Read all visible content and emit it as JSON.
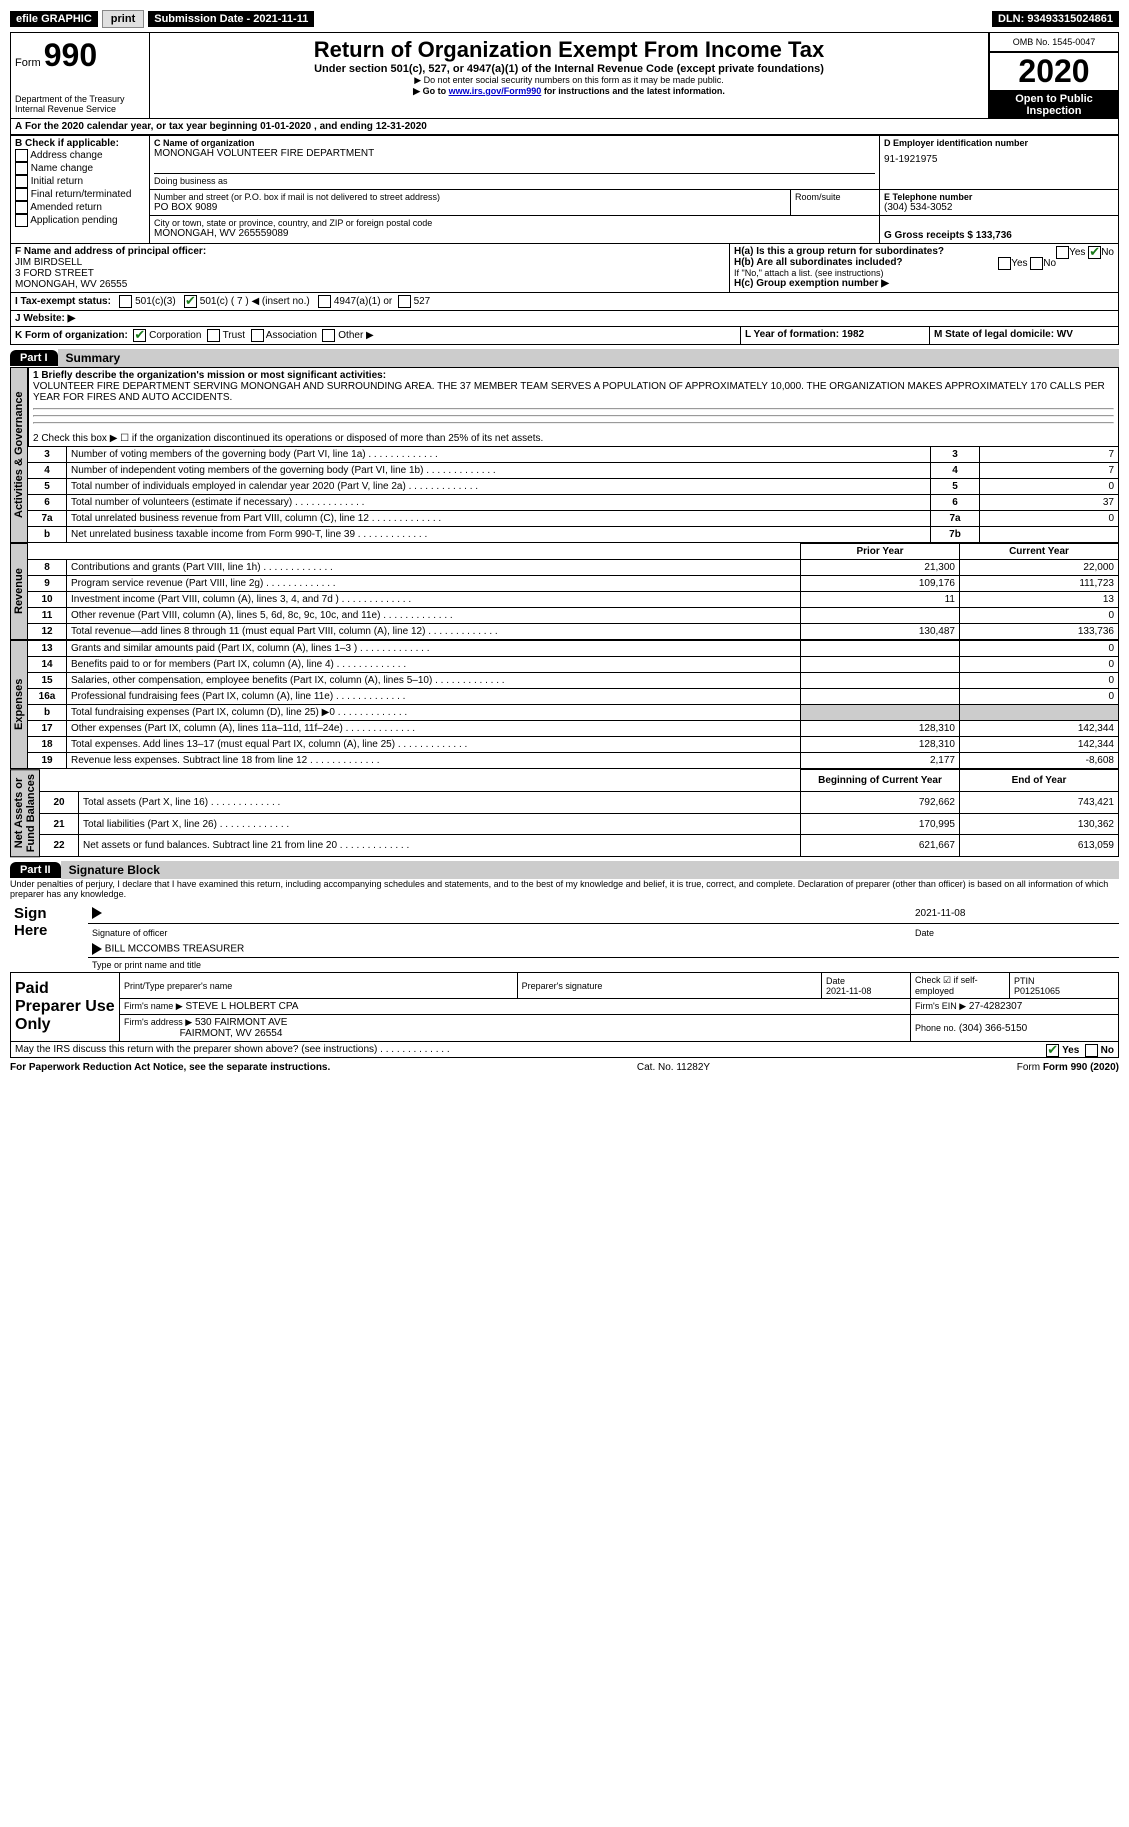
{
  "topbar": {
    "efile": "efile GRAPHIC",
    "print": "print",
    "sub_label": "Submission Date - 2021-11-11",
    "dln": "DLN: 93493315024861"
  },
  "header": {
    "form_word": "Form",
    "form_num": "990",
    "dept": "Department of the Treasury\nInternal Revenue Service",
    "title": "Return of Organization Exempt From Income Tax",
    "subtitle": "Under section 501(c), 527, or 4947(a)(1) of the Internal Revenue Code (except private foundations)",
    "note1": "▶ Do not enter social security numbers on this form as it may be made public.",
    "note2_pre": "▶ Go to ",
    "note2_link": "www.irs.gov/Form990",
    "note2_post": " for instructions and the latest information.",
    "omb": "OMB No. 1545-0047",
    "year": "2020",
    "open": "Open to Public Inspection"
  },
  "periodA": "For the 2020 calendar year, or tax year beginning 01-01-2020   , and ending 12-31-2020",
  "boxB": {
    "label": "B Check if applicable:",
    "items": [
      "Address change",
      "Name change",
      "Initial return",
      "Final return/terminated",
      "Amended return",
      "Application pending"
    ]
  },
  "boxC": {
    "name_label": "C Name of organization",
    "name": "MONONGAH VOLUNTEER FIRE DEPARTMENT",
    "dba_label": "Doing business as",
    "dba": "",
    "street_label": "Number and street (or P.O. box if mail is not delivered to street address)",
    "room_label": "Room/suite",
    "street": "PO BOX 9089",
    "city_label": "City or town, state or province, country, and ZIP or foreign postal code",
    "city": "MONONGAH, WV  265559089"
  },
  "boxD": {
    "label": "D Employer identification number",
    "val": "91-1921975"
  },
  "boxE": {
    "label": "E Telephone number",
    "val": "(304) 534-3052"
  },
  "boxG": {
    "label": "G Gross receipts $ 133,736"
  },
  "boxF": {
    "label": "F Name and address of principal officer:",
    "l1": "JIM BIRDSELL",
    "l2": "3 FORD STREET",
    "l3": "MONONGAH, WV  26555"
  },
  "boxH": {
    "a": "H(a)  Is this a group return for subordinates?",
    "b": "H(b)  Are all subordinates included?",
    "b_note": "If \"No,\" attach a list. (see instructions)",
    "c": "H(c)  Group exemption number ▶",
    "yes": "Yes",
    "no": "No"
  },
  "boxI": {
    "label": "I   Tax-exempt status:",
    "o1": "501(c)(3)",
    "o2": "501(c) ( 7 ) ◀ (insert no.)",
    "o3": "4947(a)(1) or",
    "o4": "527"
  },
  "boxJ": "J   Website: ▶",
  "boxK": {
    "label": "K Form of organization:",
    "o1": "Corporation",
    "o2": "Trust",
    "o3": "Association",
    "o4": "Other ▶"
  },
  "boxL": "L Year of formation: 1982",
  "boxM": "M State of legal domicile: WV",
  "part1": {
    "tab": "Part I",
    "title": "Summary"
  },
  "summary": {
    "l1_label": "1  Briefly describe the organization's mission or most significant activities:",
    "l1_text": "VOLUNTEER FIRE DEPARTMENT SERVING MONONGAH AND SURROUNDING AREA. THE 37 MEMBER TEAM SERVES A POPULATION OF APPROXIMATELY 10,000. THE ORGANIZATION MAKES APPROXIMATELY 170 CALLS PER YEAR FOR FIRES AND AUTO ACCIDENTS.",
    "l2": "2   Check this box ▶ ☐  if the organization discontinued its operations or disposed of more than 25% of its net assets.",
    "rows_ag": [
      {
        "n": "3",
        "t": "Number of voting members of the governing body (Part VI, line 1a)",
        "b": "3",
        "v": "7"
      },
      {
        "n": "4",
        "t": "Number of independent voting members of the governing body (Part VI, line 1b)",
        "b": "4",
        "v": "7"
      },
      {
        "n": "5",
        "t": "Total number of individuals employed in calendar year 2020 (Part V, line 2a)",
        "b": "5",
        "v": "0"
      },
      {
        "n": "6",
        "t": "Total number of volunteers (estimate if necessary)",
        "b": "6",
        "v": "37"
      },
      {
        "n": "7a",
        "t": "Total unrelated business revenue from Part VIII, column (C), line 12",
        "b": "7a",
        "v": "0"
      },
      {
        "n": "b",
        "t": "Net unrelated business taxable income from Form 990-T, line 39",
        "b": "7b",
        "v": ""
      }
    ],
    "col_prior": "Prior Year",
    "col_curr": "Current Year",
    "rev": [
      {
        "n": "8",
        "t": "Contributions and grants (Part VIII, line 1h)",
        "p": "21,300",
        "c": "22,000"
      },
      {
        "n": "9",
        "t": "Program service revenue (Part VIII, line 2g)",
        "p": "109,176",
        "c": "111,723"
      },
      {
        "n": "10",
        "t": "Investment income (Part VIII, column (A), lines 3, 4, and 7d )",
        "p": "11",
        "c": "13"
      },
      {
        "n": "11",
        "t": "Other revenue (Part VIII, column (A), lines 5, 6d, 8c, 9c, 10c, and 11e)",
        "p": "",
        "c": "0"
      },
      {
        "n": "12",
        "t": "Total revenue—add lines 8 through 11 (must equal Part VIII, column (A), line 12)",
        "p": "130,487",
        "c": "133,736"
      }
    ],
    "exp": [
      {
        "n": "13",
        "t": "Grants and similar amounts paid (Part IX, column (A), lines 1–3 )",
        "p": "",
        "c": "0"
      },
      {
        "n": "14",
        "t": "Benefits paid to or for members (Part IX, column (A), line 4)",
        "p": "",
        "c": "0"
      },
      {
        "n": "15",
        "t": "Salaries, other compensation, employee benefits (Part IX, column (A), lines 5–10)",
        "p": "",
        "c": "0"
      },
      {
        "n": "16a",
        "t": "Professional fundraising fees (Part IX, column (A), line 11e)",
        "p": "",
        "c": "0"
      },
      {
        "n": "b",
        "t": "Total fundraising expenses (Part IX, column (D), line 25) ▶0",
        "p": "gray",
        "c": "gray"
      },
      {
        "n": "17",
        "t": "Other expenses (Part IX, column (A), lines 11a–11d, 11f–24e)",
        "p": "128,310",
        "c": "142,344"
      },
      {
        "n": "18",
        "t": "Total expenses. Add lines 13–17 (must equal Part IX, column (A), line 25)",
        "p": "128,310",
        "c": "142,344"
      },
      {
        "n": "19",
        "t": "Revenue less expenses. Subtract line 18 from line 12",
        "p": "2,177",
        "c": "-8,608"
      }
    ],
    "col_beg": "Beginning of Current Year",
    "col_end": "End of Year",
    "na": [
      {
        "n": "20",
        "t": "Total assets (Part X, line 16)",
        "p": "792,662",
        "c": "743,421"
      },
      {
        "n": "21",
        "t": "Total liabilities (Part X, line 26)",
        "p": "170,995",
        "c": "130,362"
      },
      {
        "n": "22",
        "t": "Net assets or fund balances. Subtract line 21 from line 20",
        "p": "621,667",
        "c": "613,059"
      }
    ],
    "vlabels": {
      "ag": "Activities & Governance",
      "rev": "Revenue",
      "exp": "Expenses",
      "na": "Net Assets or\nFund Balances"
    }
  },
  "part2": {
    "tab": "Part II",
    "title": "Signature Block"
  },
  "sig": {
    "decl": "Under penalties of perjury, I declare that I have examined this return, including accompanying schedules and statements, and to the best of my knowledge and belief, it is true, correct, and complete. Declaration of preparer (other than officer) is based on all information of which preparer has any knowledge.",
    "sign_here": "Sign Here",
    "sig_officer": "Signature of officer",
    "sig_date": "2021-11-08",
    "date_label": "Date",
    "typed": "BILL MCCOMBS  TREASURER",
    "typed_label": "Type or print name and title",
    "paid": "Paid Preparer Use Only",
    "p_name_label": "Print/Type preparer's name",
    "p_sig_label": "Preparer's signature",
    "p_date_label": "Date",
    "p_date": "2021-11-08",
    "p_self": "Check ☑ if self-employed",
    "ptin_label": "PTIN",
    "ptin": "P01251065",
    "firm_name_label": "Firm's name    ▶",
    "firm_name": "STEVE L HOLBERT CPA",
    "firm_ein_label": "Firm's EIN ▶",
    "firm_ein": "27-4282307",
    "firm_addr_label": "Firm's address ▶",
    "firm_addr": "530 FAIRMONT AVE",
    "firm_addr2": "FAIRMONT, WV  26554",
    "phone_label": "Phone no.",
    "phone": "(304) 366-5150",
    "discuss": "May the IRS discuss this return with the preparer shown above? (see instructions)",
    "yes": "Yes",
    "no": "No"
  },
  "footer": {
    "left": "For Paperwork Reduction Act Notice, see the separate instructions.",
    "mid": "Cat. No. 11282Y",
    "right": "Form 990 (2020)"
  }
}
